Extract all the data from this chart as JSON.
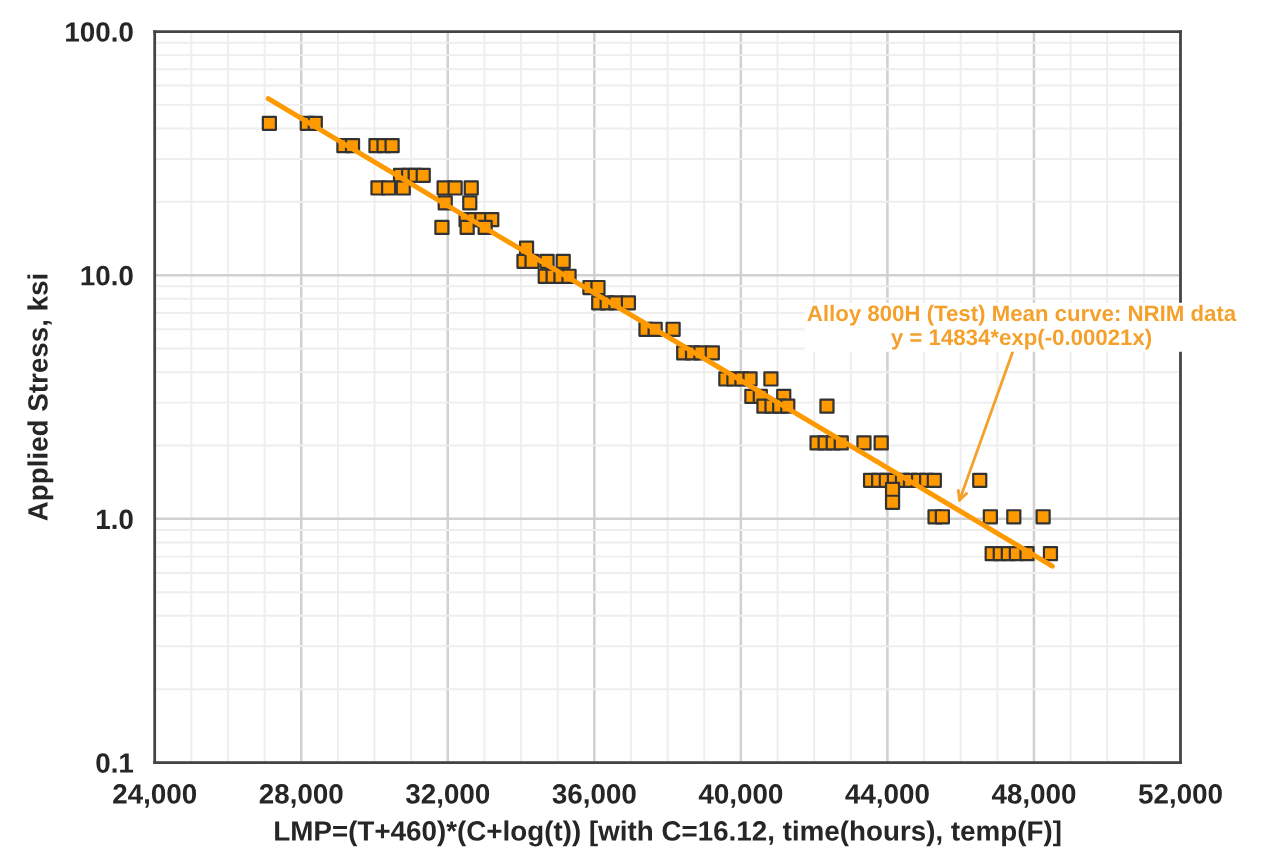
{
  "chart_data": {
    "type": "scatter",
    "xlabel": "LMP=(T+460)*(C+log(t)) [with C=16.12, time(hours), temp(F)]",
    "ylabel": "Applied Stress, ksi",
    "series": [
      {
        "color": "#ff9900",
        "marker": "square",
        "x": [
          27130,
          28165,
          28383,
          29165,
          29400,
          30040,
          30260,
          30480,
          30710,
          30930,
          31110,
          31330,
          30095,
          30385,
          30785,
          31900,
          32200,
          32640,
          31930,
          32600,
          31840,
          32500,
          32715,
          32930,
          33200,
          32530,
          33020,
          34150,
          34080,
          34300,
          34710,
          35150,
          34660,
          34875,
          35090,
          35310,
          35880,
          36100,
          36120,
          36350,
          36590,
          36930,
          37410,
          37660,
          38150,
          38440,
          38680,
          38910,
          39220,
          39590,
          39810,
          40030,
          40250,
          40820,
          40300,
          40530,
          41170,
          40630,
          40850,
          41060,
          41280,
          42350,
          42080,
          42300,
          42520,
          42740,
          43360,
          43830,
          43540,
          43760,
          43970,
          44190,
          44410,
          44630,
          44850,
          45070,
          45280,
          46520,
          44140,
          44140,
          45300,
          45500,
          46810,
          47450,
          48250,
          46860,
          47080,
          47300,
          47520,
          47810,
          48450
        ],
        "values": [
          42,
          42,
          42,
          34,
          34,
          34,
          34,
          34,
          25.7,
          25.7,
          25.7,
          25.7,
          22.8,
          22.8,
          22.8,
          22.8,
          22.8,
          22.8,
          19.8,
          19.8,
          15.7,
          16.9,
          16.9,
          16.9,
          16.9,
          15.7,
          15.7,
          12.9,
          11.4,
          11.4,
          11.4,
          11.4,
          9.9,
          9.9,
          9.9,
          9.9,
          8.9,
          8.9,
          7.7,
          7.7,
          7.7,
          7.7,
          6.0,
          6.0,
          6.0,
          4.8,
          4.8,
          4.8,
          4.8,
          3.75,
          3.75,
          3.75,
          3.75,
          3.75,
          3.18,
          3.18,
          3.18,
          2.9,
          2.9,
          2.9,
          2.9,
          2.9,
          2.05,
          2.05,
          2.05,
          2.05,
          2.05,
          2.05,
          1.44,
          1.44,
          1.44,
          1.44,
          1.44,
          1.44,
          1.44,
          1.44,
          1.44,
          1.44,
          1.32,
          1.17,
          1.02,
          1.02,
          1.02,
          1.02,
          1.02,
          0.72,
          0.72,
          0.72,
          0.72,
          0.72,
          0.72
        ]
      },
      {
        "type": "line",
        "color": "#ff9900",
        "x": [
          27100,
          48500
        ],
        "values": [
          53,
          0.64
        ]
      }
    ],
    "annotations": [
      {
        "text": "Alloy 800H (Test) Mean curve: NRIM data\ny = 14834*exp(-0.00021x)",
        "x": 45940,
        "y": 1.16
      }
    ],
    "log": "y",
    "grid": true,
    "xlim": [
      24000,
      52000
    ],
    "xticks": [
      {
        "value": 24000,
        "label": "24,000"
      },
      {
        "value": 28000,
        "label": "28,000"
      },
      {
        "value": 32000,
        "label": "32,000"
      },
      {
        "value": 36000,
        "label": "36,000"
      },
      {
        "value": 40000,
        "label": "40,000"
      },
      {
        "value": 44000,
        "label": "44,000"
      },
      {
        "value": 48000,
        "label": "48,000"
      },
      {
        "value": 52000,
        "label": "52,000"
      }
    ],
    "ylim": [
      0.1,
      100
    ],
    "yticks": [
      {
        "value": 0.1,
        "label": "0.1"
      },
      {
        "value": 1,
        "label": "1.0"
      },
      {
        "value": 10,
        "label": "10.0"
      },
      {
        "value": 100,
        "label": "100.0"
      }
    ]
  }
}
